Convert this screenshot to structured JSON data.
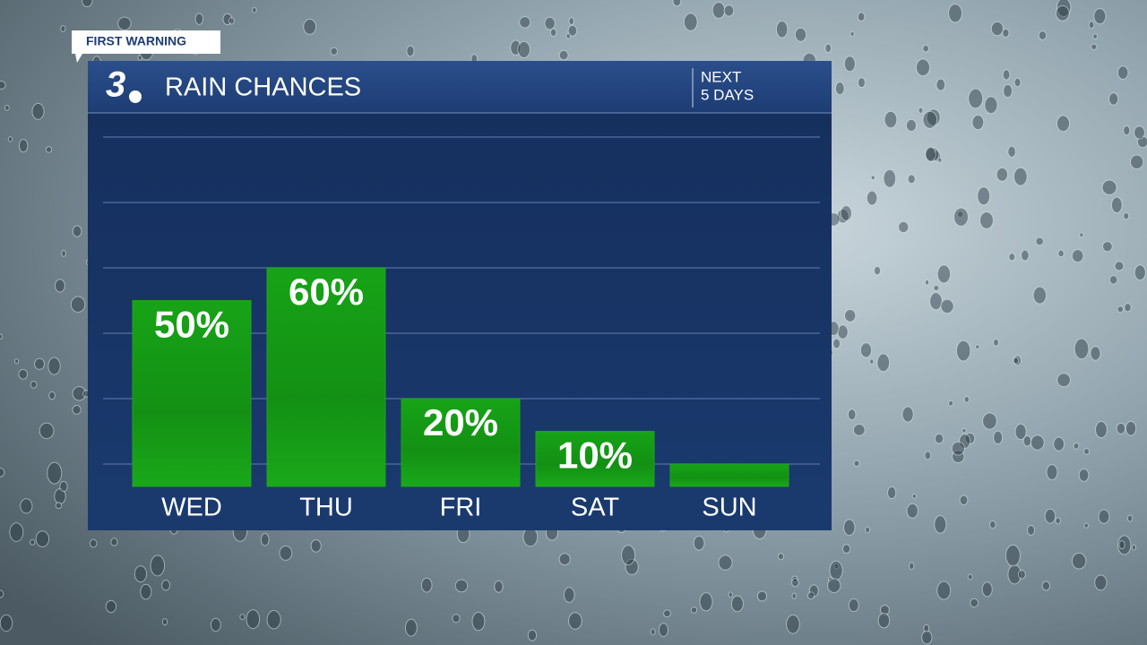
{
  "chart_data": {
    "type": "bar",
    "badge": "FIRST WARNING",
    "logo": "3",
    "title": "RAIN CHANCES",
    "period": [
      "NEXT",
      "5 DAYS"
    ],
    "categories": [
      "WED",
      "THU",
      "FRI",
      "SAT",
      "SUN"
    ],
    "values": [
      50,
      60,
      20,
      10,
      0
    ],
    "value_labels": [
      "50%",
      "60%",
      "20%",
      "10%",
      null
    ],
    "color": "#1fa31f",
    "ylim": [
      0,
      100
    ],
    "yticks": [
      0,
      20,
      40,
      60,
      80,
      100
    ],
    "grid": true
  }
}
